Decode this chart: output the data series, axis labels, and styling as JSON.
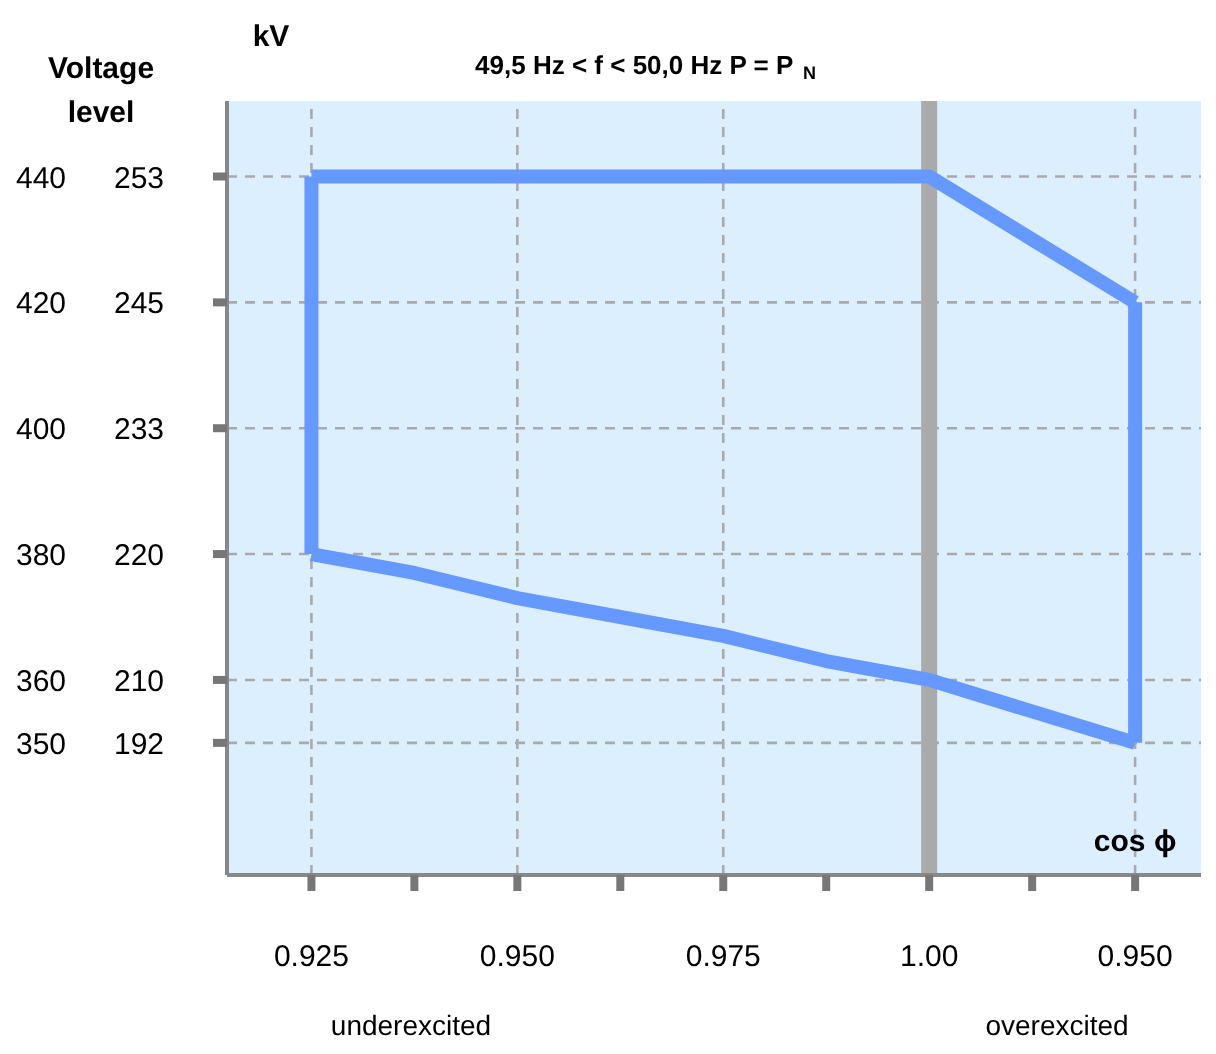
{
  "chart_data": {
    "type": "line",
    "title": "49,5 Hz < f < 50,0 Hz  P = P$_{N}$",
    "xlabel": "cos ϕ",
    "ylabel": "Voltage level",
    "categories": [
      "0.925",
      null,
      "0.950",
      null,
      "0.975",
      null,
      "1.00",
      null,
      "0.950"
    ],
    "series": [
      {
        "color": "#6699ff",
        "values": [
          440,
          440,
          440,
          440,
          440,
          440,
          440,
          430,
          420
        ]
      },
      {
        "color": "#6699ff",
        "values": [
          380,
          377,
          373,
          370,
          367,
          363,
          360,
          355,
          350
        ],
        "errors": [
          [
            380,
            440
          ],
          null,
          null,
          null,
          null,
          null,
          null,
          null,
          [
            350,
            420
          ]
        ]
      }
    ],
    "ylim": [
      329,
      452
    ],
    "yticks": [
      350,
      360,
      380,
      400,
      420,
      440
    ],
    "ref_lines": [
      {
        "axis": "x",
        "value": "1.00",
        "color": "#aaaaaa"
      }
    ],
    "grid": true,
    "marker": "none",
    "line_style": "solid",
    "annotations": [
      "kV",
      "192",
      "210",
      "220",
      "233",
      "245",
      "253",
      "underexcited",
      "overexcited"
    ]
  }
}
